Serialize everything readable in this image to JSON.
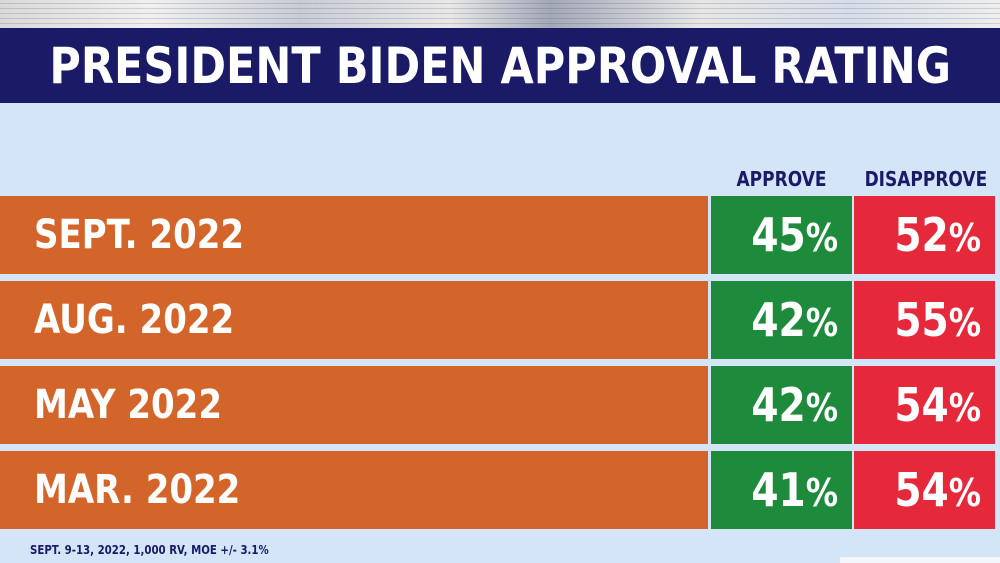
{
  "chart_data": {
    "type": "table",
    "title": "PRESIDENT BIDEN APPROVAL RATING",
    "columns": [
      "APPROVE",
      "DISAPPROVE"
    ],
    "rows": [
      {
        "label": "SEPT. 2022",
        "approve": 45,
        "disapprove": 52
      },
      {
        "label": "AUG. 2022",
        "approve": 42,
        "disapprove": 55
      },
      {
        "label": "MAY 2022",
        "approve": 42,
        "disapprove": 54
      },
      {
        "label": "MAR. 2022",
        "approve": 41,
        "disapprove": 54
      }
    ],
    "unit": "%",
    "footnote": "SEPT. 9-13, 2022, 1,000 RV, MOE +/- 3.1%"
  },
  "colors": {
    "title_bar": "#1b1a66",
    "label_cell": "#d4652a",
    "approve": "#1e8a3c",
    "disapprove": "#e5283a",
    "panel": "#d3e5f7"
  }
}
